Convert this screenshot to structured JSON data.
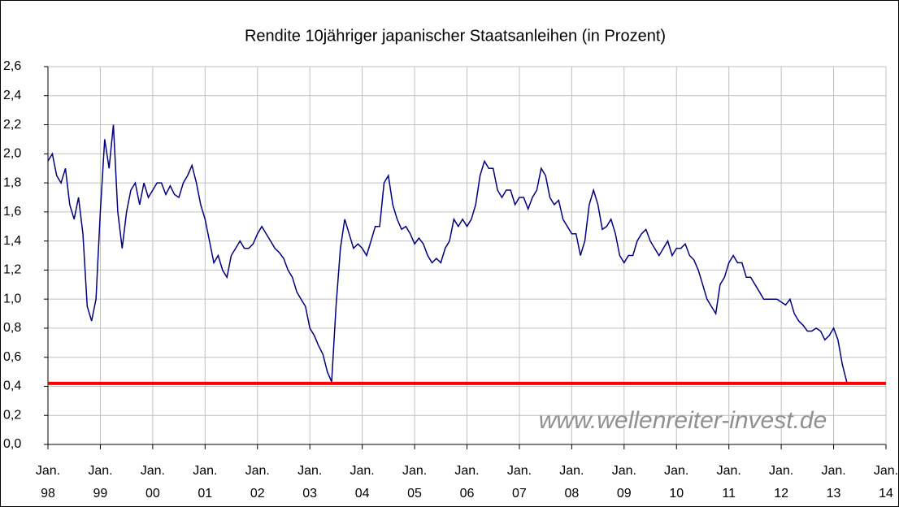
{
  "chart_data": {
    "type": "line",
    "title": "Rendite 10jähriger japanischer Staatsanleihen (in Prozent)",
    "annotation": "www.wellenreiter-invest.de",
    "x": [
      "1998-01",
      "1998-02",
      "1998-03",
      "1998-04",
      "1998-05",
      "1998-06",
      "1998-07",
      "1998-08",
      "1998-09",
      "1998-10",
      "1998-11",
      "1998-12",
      "1999-01",
      "1999-02",
      "1999-03",
      "1999-04",
      "1999-05",
      "1999-06",
      "1999-07",
      "1999-08",
      "1999-09",
      "1999-10",
      "1999-11",
      "1999-12",
      "2000-01",
      "2000-02",
      "2000-03",
      "2000-04",
      "2000-05",
      "2000-06",
      "2000-07",
      "2000-08",
      "2000-09",
      "2000-10",
      "2000-11",
      "2000-12",
      "2001-01",
      "2001-02",
      "2001-03",
      "2001-04",
      "2001-05",
      "2001-06",
      "2001-07",
      "2001-08",
      "2001-09",
      "2001-10",
      "2001-11",
      "2001-12",
      "2002-01",
      "2002-02",
      "2002-03",
      "2002-04",
      "2002-05",
      "2002-06",
      "2002-07",
      "2002-08",
      "2002-09",
      "2002-10",
      "2002-11",
      "2002-12",
      "2003-01",
      "2003-02",
      "2003-03",
      "2003-04",
      "2003-05",
      "2003-06",
      "2003-07",
      "2003-08",
      "2003-09",
      "2003-10",
      "2003-11",
      "2003-12",
      "2004-01",
      "2004-02",
      "2004-03",
      "2004-04",
      "2004-05",
      "2004-06",
      "2004-07",
      "2004-08",
      "2004-09",
      "2004-10",
      "2004-11",
      "2004-12",
      "2005-01",
      "2005-02",
      "2005-03",
      "2005-04",
      "2005-05",
      "2005-06",
      "2005-07",
      "2005-08",
      "2005-09",
      "2005-10",
      "2005-11",
      "2005-12",
      "2006-01",
      "2006-02",
      "2006-03",
      "2006-04",
      "2006-05",
      "2006-06",
      "2006-07",
      "2006-08",
      "2006-09",
      "2006-10",
      "2006-11",
      "2006-12",
      "2007-01",
      "2007-02",
      "2007-03",
      "2007-04",
      "2007-05",
      "2007-06",
      "2007-07",
      "2007-08",
      "2007-09",
      "2007-10",
      "2007-11",
      "2007-12",
      "2008-01",
      "2008-02",
      "2008-03",
      "2008-04",
      "2008-05",
      "2008-06",
      "2008-07",
      "2008-08",
      "2008-09",
      "2008-10",
      "2008-11",
      "2008-12",
      "2009-01",
      "2009-02",
      "2009-03",
      "2009-04",
      "2009-05",
      "2009-06",
      "2009-07",
      "2009-08",
      "2009-09",
      "2009-10",
      "2009-11",
      "2009-12",
      "2010-01",
      "2010-02",
      "2010-03",
      "2010-04",
      "2010-05",
      "2010-06",
      "2010-07",
      "2010-08",
      "2010-09",
      "2010-10",
      "2010-11",
      "2010-12",
      "2011-01",
      "2011-02",
      "2011-03",
      "2011-04",
      "2011-05",
      "2011-06",
      "2011-07",
      "2011-08",
      "2011-09",
      "2011-10",
      "2011-11",
      "2011-12",
      "2012-01",
      "2012-02",
      "2012-03",
      "2012-04",
      "2012-05",
      "2012-06",
      "2012-07",
      "2012-08",
      "2012-09",
      "2012-10",
      "2012-11",
      "2012-12",
      "2013-01",
      "2013-02",
      "2013-03",
      "2013-04"
    ],
    "series": [
      {
        "color": "#000080",
        "values": [
          1.95,
          2.0,
          1.85,
          1.8,
          1.9,
          1.65,
          1.55,
          1.7,
          1.45,
          0.95,
          0.85,
          1.0,
          1.6,
          2.1,
          1.9,
          2.2,
          1.6,
          1.35,
          1.6,
          1.75,
          1.8,
          1.65,
          1.8,
          1.7,
          1.75,
          1.8,
          1.8,
          1.72,
          1.78,
          1.72,
          1.7,
          1.8,
          1.85,
          1.92,
          1.8,
          1.65,
          1.55,
          1.4,
          1.25,
          1.3,
          1.2,
          1.15,
          1.3,
          1.35,
          1.4,
          1.35,
          1.35,
          1.38,
          1.45,
          1.5,
          1.45,
          1.4,
          1.35,
          1.32,
          1.28,
          1.2,
          1.15,
          1.05,
          1.0,
          0.95,
          0.8,
          0.75,
          0.68,
          0.62,
          0.5,
          0.43,
          0.95,
          1.35,
          1.55,
          1.45,
          1.35,
          1.38,
          1.35,
          1.3,
          1.4,
          1.5,
          1.5,
          1.8,
          1.85,
          1.65,
          1.55,
          1.48,
          1.5,
          1.45,
          1.38,
          1.42,
          1.38,
          1.3,
          1.25,
          1.28,
          1.25,
          1.35,
          1.4,
          1.55,
          1.5,
          1.55,
          1.5,
          1.55,
          1.65,
          1.85,
          1.95,
          1.9,
          1.9,
          1.75,
          1.7,
          1.75,
          1.75,
          1.65,
          1.7,
          1.7,
          1.62,
          1.7,
          1.75,
          1.9,
          1.85,
          1.7,
          1.65,
          1.68,
          1.55,
          1.5,
          1.45,
          1.45,
          1.3,
          1.4,
          1.65,
          1.75,
          1.65,
          1.48,
          1.5,
          1.55,
          1.45,
          1.3,
          1.25,
          1.3,
          1.3,
          1.4,
          1.45,
          1.48,
          1.4,
          1.35,
          1.3,
          1.35,
          1.4,
          1.3,
          1.35,
          1.35,
          1.38,
          1.3,
          1.27,
          1.2,
          1.1,
          1.0,
          0.95,
          0.9,
          1.1,
          1.15,
          1.25,
          1.3,
          1.25,
          1.25,
          1.15,
          1.15,
          1.1,
          1.05,
          1.0,
          1.0,
          1.0,
          1.0,
          0.98,
          0.96,
          1.0,
          0.9,
          0.85,
          0.82,
          0.78,
          0.78,
          0.8,
          0.78,
          0.72,
          0.75,
          0.8,
          0.72,
          0.55,
          0.43
        ]
      }
    ],
    "reference_line": {
      "value": 0.42,
      "color": "#ff0000"
    },
    "xlim": [
      "1998-01",
      "2014-01"
    ],
    "xticks": [
      {
        "value": "1998-01",
        "label": [
          "Jan.",
          "98"
        ]
      },
      {
        "value": "1999-01",
        "label": [
          "Jan.",
          "99"
        ]
      },
      {
        "value": "2000-01",
        "label": [
          "Jan.",
          "00"
        ]
      },
      {
        "value": "2001-01",
        "label": [
          "Jan.",
          "01"
        ]
      },
      {
        "value": "2002-01",
        "label": [
          "Jan.",
          "02"
        ]
      },
      {
        "value": "2003-01",
        "label": [
          "Jan.",
          "03"
        ]
      },
      {
        "value": "2004-01",
        "label": [
          "Jan.",
          "04"
        ]
      },
      {
        "value": "2005-01",
        "label": [
          "Jan.",
          "05"
        ]
      },
      {
        "value": "2006-01",
        "label": [
          "Jan.",
          "06"
        ]
      },
      {
        "value": "2007-01",
        "label": [
          "Jan.",
          "07"
        ]
      },
      {
        "value": "2008-01",
        "label": [
          "Jan.",
          "08"
        ]
      },
      {
        "value": "2009-01",
        "label": [
          "Jan.",
          "09"
        ]
      },
      {
        "value": "2010-01",
        "label": [
          "Jan.",
          "10"
        ]
      },
      {
        "value": "2011-01",
        "label": [
          "Jan.",
          "11"
        ]
      },
      {
        "value": "2012-01",
        "label": [
          "Jan.",
          "12"
        ]
      },
      {
        "value": "2013-01",
        "label": [
          "Jan.",
          "13"
        ]
      },
      {
        "value": "2014-01",
        "label": [
          "Jan.",
          "14"
        ]
      }
    ],
    "ylim": [
      0,
      2.6
    ],
    "yticks": [
      {
        "value": 0,
        "label": "0,0"
      },
      {
        "value": 0.2,
        "label": "0,2"
      },
      {
        "value": 0.4,
        "label": "0,4"
      },
      {
        "value": 0.6,
        "label": "0,6"
      },
      {
        "value": 0.8,
        "label": "0,8"
      },
      {
        "value": 1.0,
        "label": "1,0"
      },
      {
        "value": 1.2,
        "label": "1,2"
      },
      {
        "value": 1.4,
        "label": "1,4"
      },
      {
        "value": 1.6,
        "label": "1,6"
      },
      {
        "value": 1.8,
        "label": "1,8"
      },
      {
        "value": 2.0,
        "label": "2,0"
      },
      {
        "value": 2.2,
        "label": "2,2"
      },
      {
        "value": 2.4,
        "label": "2,4"
      },
      {
        "value": 2.6,
        "label": "2,6"
      }
    ],
    "grid": true
  }
}
